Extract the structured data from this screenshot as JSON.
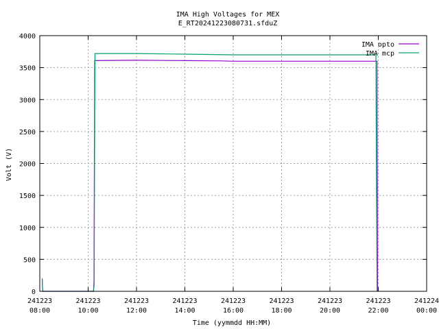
{
  "chart_data": {
    "type": "line",
    "title": "IMA High Voltages for MEX",
    "subtitle": "E_RT20241223080731.sfduZ",
    "xlabel": "Time (yymmdd HH:MM)",
    "ylabel": "Volt (V)",
    "x_range_hours": [
      8,
      24
    ],
    "ylim": [
      0,
      4000
    ],
    "y_ticks": [
      0,
      500,
      1000,
      1500,
      2000,
      2500,
      3000,
      3500,
      4000
    ],
    "x_ticks": [
      {
        "hour": 8,
        "date": "241223",
        "time": "08:00"
      },
      {
        "hour": 10,
        "date": "241223",
        "time": "10:00"
      },
      {
        "hour": 12,
        "date": "241223",
        "time": "12:00"
      },
      {
        "hour": 14,
        "date": "241223",
        "time": "14:00"
      },
      {
        "hour": 16,
        "date": "241223",
        "time": "16:00"
      },
      {
        "hour": 18,
        "date": "241223",
        "time": "18:00"
      },
      {
        "hour": 20,
        "date": "241223",
        "time": "20:00"
      },
      {
        "hour": 22,
        "date": "241223",
        "time": "22:00"
      },
      {
        "hour": 24,
        "date": "241224",
        "time": "00:00"
      }
    ],
    "grid": true,
    "legend_position": "top-right",
    "series": [
      {
        "name": "IMA opto",
        "color": "#9400d3",
        "points": [
          [
            8.1,
            200
          ],
          [
            8.12,
            0
          ],
          [
            10.22,
            0
          ],
          [
            10.24,
            150
          ],
          [
            10.27,
            3610
          ],
          [
            12.0,
            3615
          ],
          [
            14.0,
            3610
          ],
          [
            15.5,
            3605
          ],
          [
            16.0,
            3600
          ],
          [
            18.0,
            3600
          ],
          [
            20.0,
            3600
          ],
          [
            21.95,
            3600
          ],
          [
            21.97,
            0
          ]
        ]
      },
      {
        "name": "IMA mcp",
        "color": "#009e73",
        "points": [
          [
            8.1,
            200
          ],
          [
            8.12,
            0
          ],
          [
            10.22,
            0
          ],
          [
            10.25,
            100
          ],
          [
            10.28,
            3720
          ],
          [
            12.0,
            3720
          ],
          [
            14.0,
            3710
          ],
          [
            16.0,
            3700
          ],
          [
            18.0,
            3700
          ],
          [
            20.0,
            3700
          ],
          [
            21.9,
            3700
          ],
          [
            21.92,
            2000
          ],
          [
            21.95,
            0
          ]
        ]
      }
    ]
  }
}
